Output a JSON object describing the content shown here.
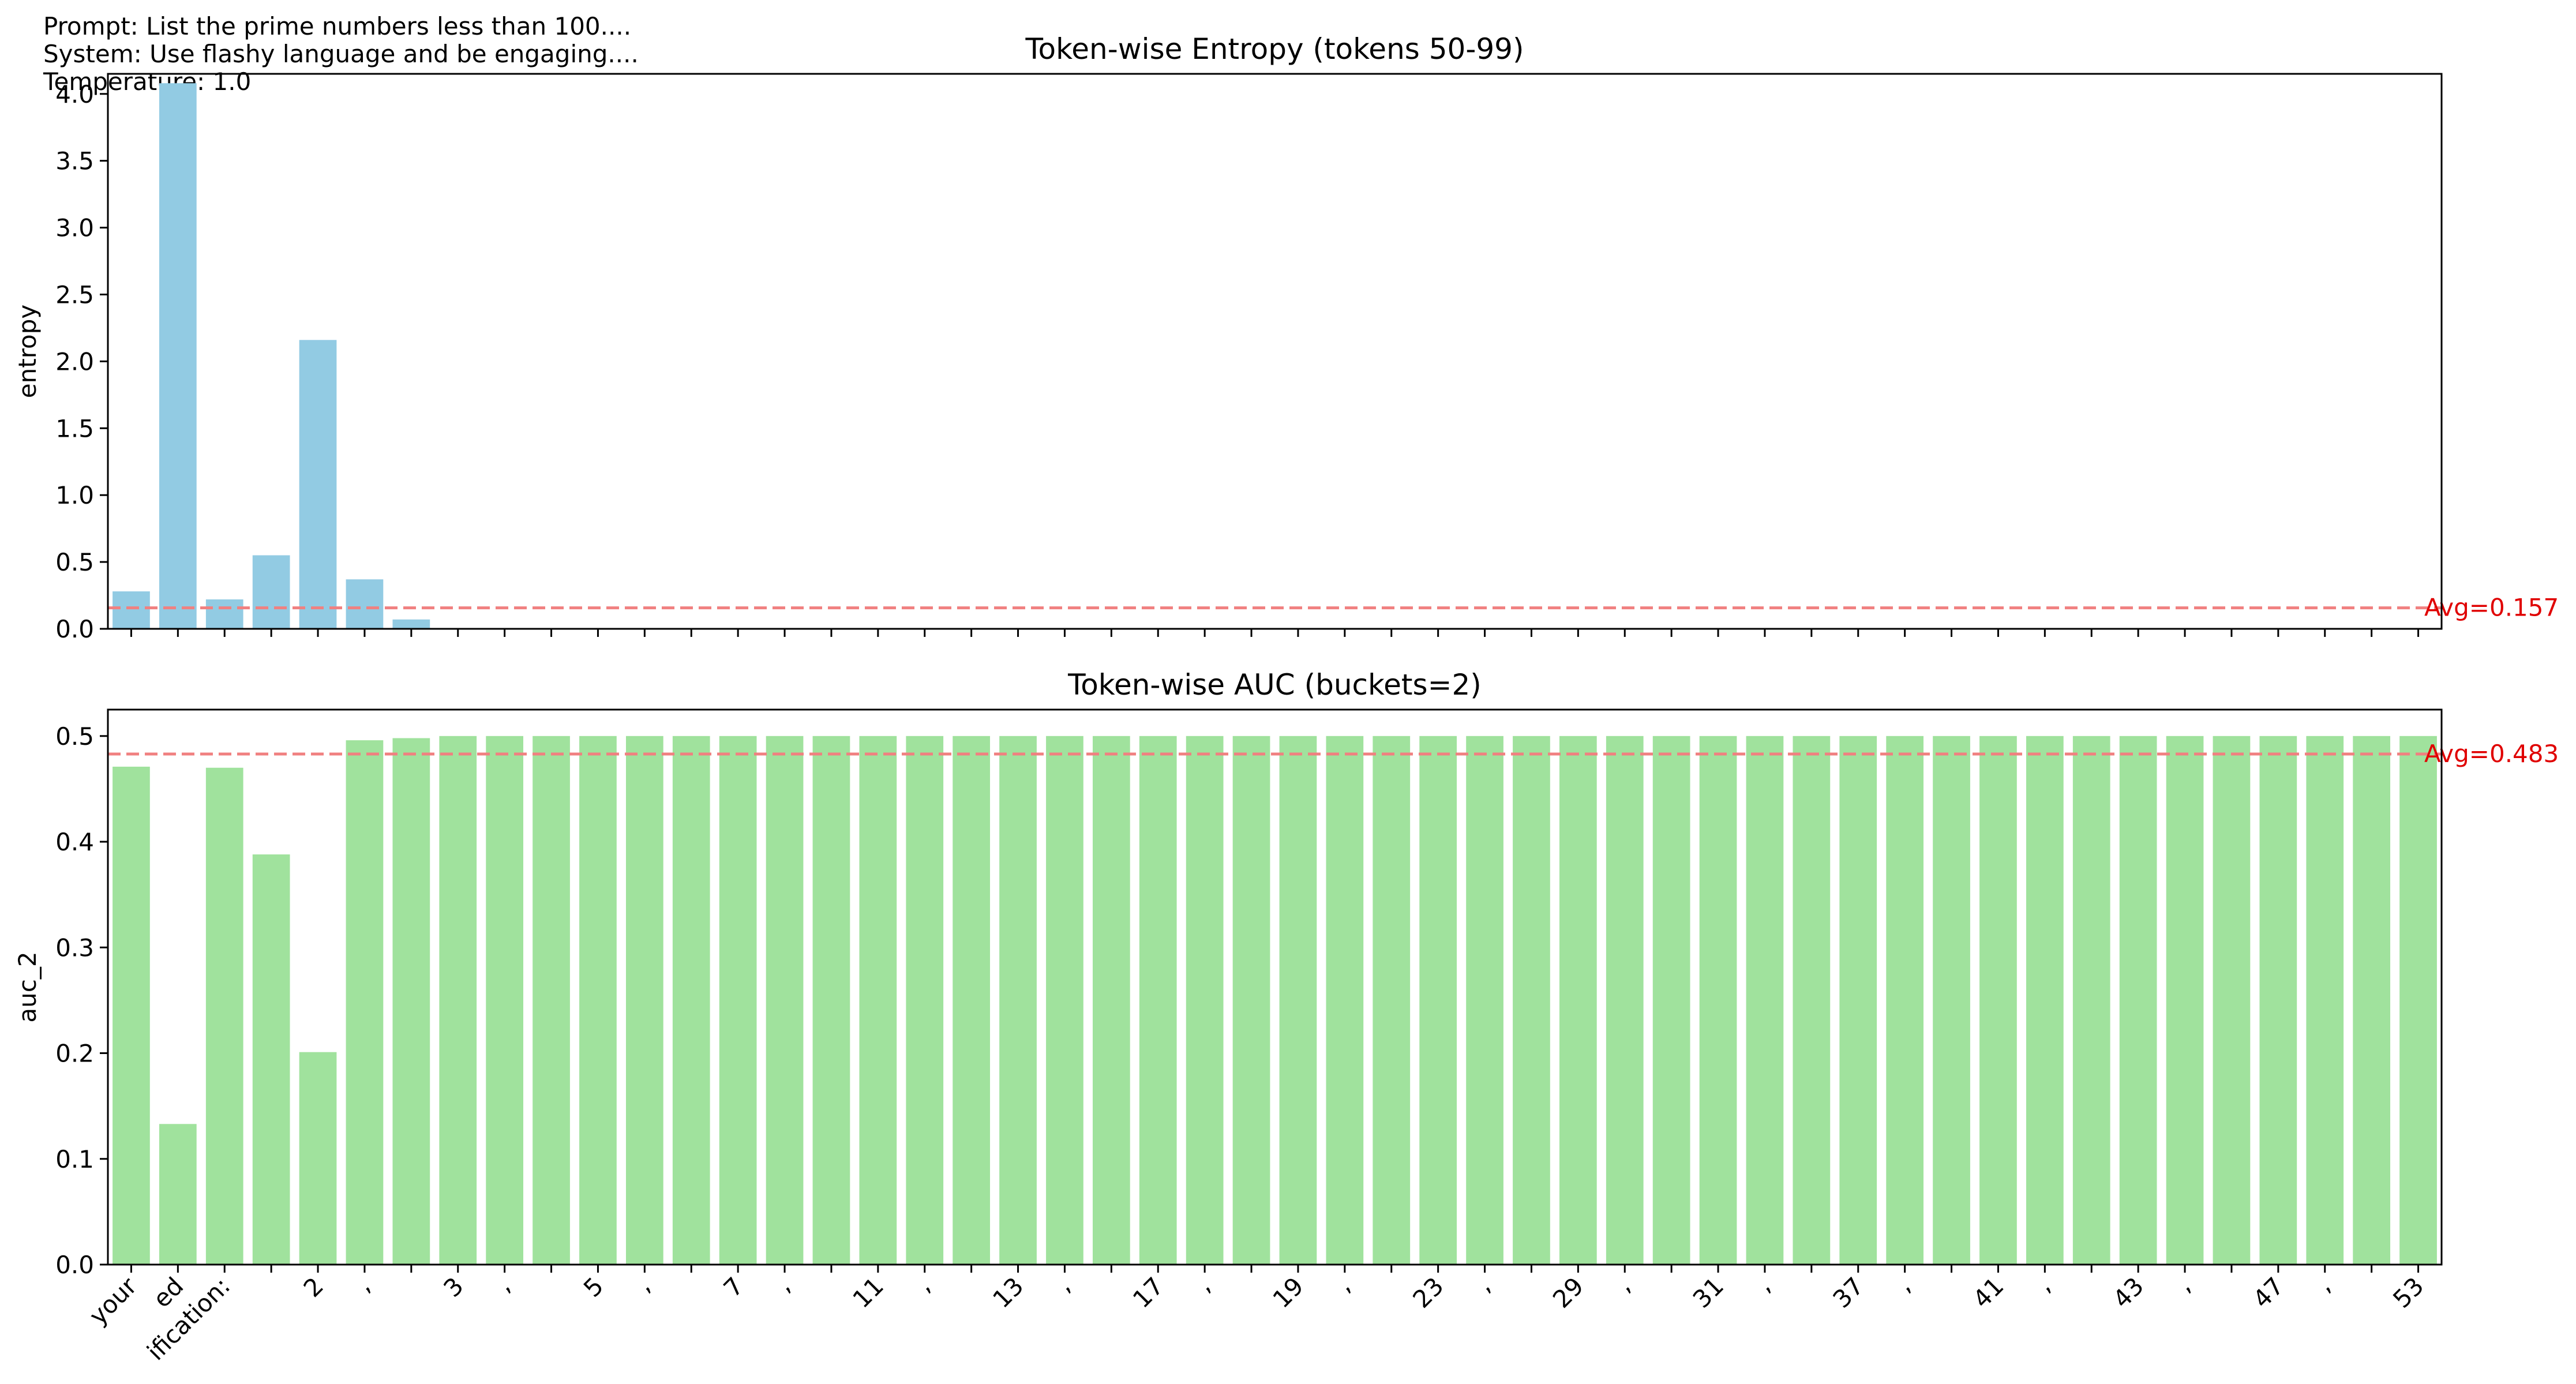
{
  "meta": {
    "prompt": "Prompt: List the prime numbers less than 100....",
    "system": "System: Use flashy language and be engaging....",
    "temperature": "Temperature: 1.0"
  },
  "chart_data": [
    {
      "type": "bar",
      "title": "Token-wise Entropy (tokens 50-99)",
      "ylabel": "entropy",
      "xlabel": "",
      "ylim": [
        0,
        4.15
      ],
      "yticks": [
        0.0,
        0.5,
        1.0,
        1.5,
        2.0,
        2.5,
        3.0,
        3.5,
        4.0
      ],
      "bar_color": "#92cbe3",
      "values": [
        0.28,
        4.08,
        0.22,
        0.55,
        2.16,
        0.37,
        0.07,
        0,
        0,
        0,
        0,
        0,
        0,
        0,
        0,
        0,
        0,
        0,
        0,
        0,
        0,
        0,
        0,
        0,
        0,
        0,
        0,
        0,
        0,
        0,
        0,
        0,
        0,
        0,
        0,
        0,
        0,
        0,
        0,
        0,
        0,
        0,
        0,
        0,
        0,
        0,
        0,
        0,
        0,
        0
      ],
      "avg": 0.157,
      "avg_label": "Avg=0.157",
      "avg_color": "#f08080",
      "grid": false,
      "show_xtick_labels": false
    },
    {
      "type": "bar",
      "title": "Token-wise AUC (buckets=2)",
      "ylabel": "auc_2",
      "xlabel": "",
      "ylim": [
        0,
        0.525
      ],
      "yticks": [
        0.0,
        0.1,
        0.2,
        0.3,
        0.4,
        0.5
      ],
      "bar_color": "#a0e29d",
      "values": [
        0.471,
        0.133,
        0.47,
        0.388,
        0.201,
        0.496,
        0.498,
        0.5,
        0.5,
        0.5,
        0.5,
        0.5,
        0.5,
        0.5,
        0.5,
        0.5,
        0.5,
        0.5,
        0.5,
        0.5,
        0.5,
        0.5,
        0.5,
        0.5,
        0.5,
        0.5,
        0.5,
        0.5,
        0.5,
        0.5,
        0.5,
        0.5,
        0.5,
        0.5,
        0.5,
        0.5,
        0.5,
        0.5,
        0.5,
        0.5,
        0.5,
        0.5,
        0.5,
        0.5,
        0.5,
        0.5,
        0.5,
        0.5,
        0.5,
        0.5
      ],
      "avg": 0.483,
      "avg_label": "Avg=0.483",
      "avg_color": "#f08080",
      "grid": false,
      "show_xtick_labels": true
    }
  ],
  "tick_labels": [
    {
      "index": 0,
      "text": "your"
    },
    {
      "index": 1,
      "text": "ed"
    },
    {
      "index": 2,
      "text": "ification:"
    },
    {
      "index": 4,
      "text": "2"
    },
    {
      "index": 5,
      "text": ","
    },
    {
      "index": 7,
      "text": "3"
    },
    {
      "index": 8,
      "text": ","
    },
    {
      "index": 10,
      "text": "5"
    },
    {
      "index": 11,
      "text": ","
    },
    {
      "index": 13,
      "text": "7"
    },
    {
      "index": 14,
      "text": ","
    },
    {
      "index": 16,
      "text": "11"
    },
    {
      "index": 17,
      "text": ","
    },
    {
      "index": 19,
      "text": "13"
    },
    {
      "index": 20,
      "text": ","
    },
    {
      "index": 22,
      "text": "17"
    },
    {
      "index": 23,
      "text": ","
    },
    {
      "index": 25,
      "text": "19"
    },
    {
      "index": 26,
      "text": ","
    },
    {
      "index": 28,
      "text": "23"
    },
    {
      "index": 29,
      "text": ","
    },
    {
      "index": 31,
      "text": "29"
    },
    {
      "index": 32,
      "text": ","
    },
    {
      "index": 34,
      "text": "31"
    },
    {
      "index": 35,
      "text": ","
    },
    {
      "index": 37,
      "text": "37"
    },
    {
      "index": 38,
      "text": ","
    },
    {
      "index": 40,
      "text": "41"
    },
    {
      "index": 41,
      "text": ","
    },
    {
      "index": 43,
      "text": "43"
    },
    {
      "index": 44,
      "text": ","
    },
    {
      "index": 46,
      "text": "47"
    },
    {
      "index": 47,
      "text": ","
    },
    {
      "index": 49,
      "text": "53"
    }
  ]
}
